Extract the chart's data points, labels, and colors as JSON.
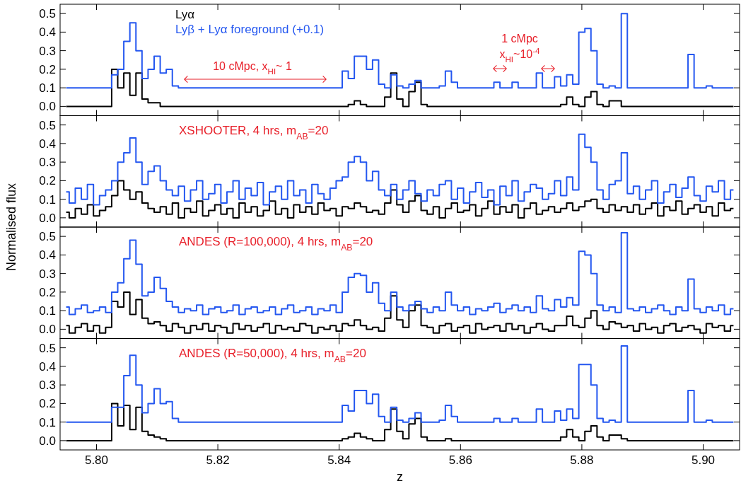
{
  "chart_data": [
    {
      "type": "step",
      "legend": "top left",
      "tick_labels": "y",
      "annotations": [
        "10 cMpc, x$_{HI}$~ 1",
        "1 cMpc",
        "x$_{HI}$~10$^{-4}$"
      ],
      "x": [
        5.795,
        5.796,
        5.797,
        5.798,
        5.799,
        5.8,
        5.801,
        5.802,
        5.803,
        5.804,
        5.805,
        5.806,
        5.807,
        5.808,
        5.809,
        5.81,
        5.811,
        5.812,
        5.813,
        5.814,
        5.815,
        5.816,
        5.817,
        5.818,
        5.819,
        5.82,
        5.821,
        5.822,
        5.823,
        5.824,
        5.825,
        5.826,
        5.827,
        5.828,
        5.829,
        5.83,
        5.831,
        5.832,
        5.833,
        5.834,
        5.835,
        5.836,
        5.837,
        5.838,
        5.839,
        5.84,
        5.841,
        5.842,
        5.843,
        5.844,
        5.845,
        5.846,
        5.847,
        5.848,
        5.849,
        5.85,
        5.851,
        5.852,
        5.853,
        5.854,
        5.855,
        5.856,
        5.857,
        5.858,
        5.859,
        5.86,
        5.861,
        5.862,
        5.863,
        5.864,
        5.865,
        5.866,
        5.867,
        5.868,
        5.869,
        5.87,
        5.871,
        5.872,
        5.873,
        5.874,
        5.875,
        5.876,
        5.877,
        5.878,
        5.879,
        5.88,
        5.881,
        5.882,
        5.883,
        5.884,
        5.885,
        5.886,
        5.887,
        5.888,
        5.889,
        5.89,
        5.891,
        5.892,
        5.893,
        5.894,
        5.895,
        5.896,
        5.897,
        5.898,
        5.899,
        5.9,
        5.901,
        5.902,
        5.903,
        5.904,
        5.905
      ],
      "xlim": [
        5.794,
        5.906
      ],
      "xticks": [
        {
          "value": 5.8,
          "label": null
        },
        {
          "value": 5.82,
          "label": null
        },
        {
          "value": 5.84,
          "label": null
        },
        {
          "value": 5.86,
          "label": null
        },
        {
          "value": 5.88,
          "label": null
        },
        {
          "value": 5.9,
          "label": null
        }
      ],
      "ylim": [
        -0.05,
        0.55
      ],
      "yticks": [
        {
          "value": 0,
          "label": "0.0"
        },
        {
          "value": 0.1,
          "label": "0.1"
        },
        {
          "value": 0.2,
          "label": "0.2"
        },
        {
          "value": 0.3,
          "label": "0.3"
        },
        {
          "value": 0.4,
          "label": "0.4"
        },
        {
          "value": 0.5,
          "label": "0.5"
        }
      ],
      "series": [
        {
          "name": "Lyα",
          "color": "#000000",
          "values": [
            0,
            0,
            0,
            0,
            0,
            0,
            0,
            0,
            0.2,
            0.1,
            0.18,
            0.06,
            0.18,
            0.04,
            0.02,
            0.02,
            0,
            0,
            0,
            0,
            0,
            0,
            0,
            0,
            0,
            0,
            0,
            0,
            0,
            0,
            0,
            0,
            0,
            0,
            0,
            0,
            0,
            0,
            0,
            0,
            0,
            0,
            0,
            0,
            0,
            0,
            0,
            0.01,
            0.03,
            0.01,
            0,
            0,
            0,
            0.05,
            0.18,
            0.04,
            0,
            0.08,
            0.13,
            0.01,
            0,
            0,
            0,
            0,
            0,
            0,
            0,
            0,
            0,
            0,
            0,
            0,
            0,
            0,
            0,
            0,
            0,
            0,
            0,
            0,
            0,
            0,
            0.01,
            0.05,
            0.01,
            0,
            0.05,
            0.08,
            0.01,
            0,
            0.03,
            0.03,
            0,
            0,
            0,
            0,
            0,
            0,
            0,
            0,
            0,
            0,
            0,
            0,
            0,
            0,
            0,
            0,
            0,
            0,
            0
          ]
        },
        {
          "name": "Lyβ + Lyα foreground (+0.1)",
          "color": "#2457f0",
          "values": [
            0.1,
            0.1,
            0.1,
            0.1,
            0.1,
            0.1,
            0.1,
            0.1,
            0.17,
            0.2,
            0.35,
            0.45,
            0.3,
            0.15,
            0.2,
            0.27,
            0.18,
            0.2,
            0.11,
            0.1,
            0.1,
            0.1,
            0.1,
            0.1,
            0.1,
            0.1,
            0.1,
            0.1,
            0.1,
            0.1,
            0.1,
            0.1,
            0.1,
            0.1,
            0.1,
            0.1,
            0.1,
            0.1,
            0.1,
            0.1,
            0.1,
            0.1,
            0.1,
            0.1,
            0.1,
            0.1,
            0.19,
            0.15,
            0.27,
            0.27,
            0.2,
            0.25,
            0.12,
            0.1,
            0.17,
            0.11,
            0.1,
            0.12,
            0.14,
            0.1,
            0.1,
            0.1,
            0.11,
            0.19,
            0.13,
            0.1,
            0.1,
            0.1,
            0.1,
            0.1,
            0.1,
            0.13,
            0.1,
            0.1,
            0.13,
            0.1,
            0.1,
            0.1,
            0.18,
            0.1,
            0.1,
            0.16,
            0.11,
            0.17,
            0.12,
            0.4,
            0.42,
            0.3,
            0.12,
            0.1,
            0.11,
            0.1,
            0.5,
            0.1,
            0.1,
            0.1,
            0.1,
            0.1,
            0.1,
            0.1,
            0.1,
            0.1,
            0.1,
            0.28,
            0.1,
            0.1,
            0.11,
            0.1,
            0.1,
            0.1,
            0.1
          ]
        }
      ]
    },
    {
      "type": "step",
      "tick_labels": "y",
      "ylabel": "Normalised flux",
      "annotations": [
        "XSHOOTER, 4 hrs, m$_{AB}$=20"
      ],
      "x": [
        5.795,
        5.796,
        5.797,
        5.798,
        5.799,
        5.8,
        5.801,
        5.802,
        5.803,
        5.804,
        5.805,
        5.806,
        5.807,
        5.808,
        5.809,
        5.81,
        5.811,
        5.812,
        5.813,
        5.814,
        5.815,
        5.816,
        5.817,
        5.818,
        5.819,
        5.82,
        5.821,
        5.822,
        5.823,
        5.824,
        5.825,
        5.826,
        5.827,
        5.828,
        5.829,
        5.83,
        5.831,
        5.832,
        5.833,
        5.834,
        5.835,
        5.836,
        5.837,
        5.838,
        5.839,
        5.84,
        5.841,
        5.842,
        5.843,
        5.844,
        5.845,
        5.846,
        5.847,
        5.848,
        5.849,
        5.85,
        5.851,
        5.852,
        5.853,
        5.854,
        5.855,
        5.856,
        5.857,
        5.858,
        5.859,
        5.86,
        5.861,
        5.862,
        5.863,
        5.864,
        5.865,
        5.866,
        5.867,
        5.868,
        5.869,
        5.87,
        5.871,
        5.872,
        5.873,
        5.874,
        5.875,
        5.876,
        5.877,
        5.878,
        5.879,
        5.88,
        5.881,
        5.882,
        5.883,
        5.884,
        5.885,
        5.886,
        5.887,
        5.888,
        5.889,
        5.89,
        5.891,
        5.892,
        5.893,
        5.894,
        5.895,
        5.896,
        5.897,
        5.898,
        5.899,
        5.9,
        5.901,
        5.902,
        5.903,
        5.904,
        5.905
      ],
      "xlim": [
        5.794,
        5.906
      ],
      "xticks": [
        {
          "value": 5.8,
          "label": null
        },
        {
          "value": 5.82,
          "label": null
        },
        {
          "value": 5.84,
          "label": null
        },
        {
          "value": 5.86,
          "label": null
        },
        {
          "value": 5.88,
          "label": null
        },
        {
          "value": 5.9,
          "label": null
        }
      ],
      "ylim": [
        -0.05,
        0.55
      ],
      "yticks": [
        {
          "value": 0,
          "label": "0.0"
        },
        {
          "value": 0.1,
          "label": "0.1"
        },
        {
          "value": 0.2,
          "label": "0.2"
        },
        {
          "value": 0.3,
          "label": "0.3"
        },
        {
          "value": 0.4,
          "label": "0.4"
        },
        {
          "value": 0.5,
          "label": "0.5"
        }
      ],
      "series": [
        {
          "color": "#000000",
          "values": [
            0.03,
            0.0,
            0.05,
            0.02,
            0.07,
            0.01,
            0.04,
            0.06,
            0.12,
            0.2,
            0.15,
            0.1,
            0.14,
            0.08,
            0.05,
            0.03,
            0.06,
            0.02,
            0.08,
            0.0,
            0.05,
            0.03,
            0.09,
            0.01,
            0.04,
            0.07,
            0.02,
            0.05,
            0.0,
            0.08,
            0.03,
            0.06,
            0.01,
            0.04,
            0.09,
            0.02,
            0.05,
            0.0,
            0.07,
            0.03,
            0.06,
            0.02,
            0.08,
            0.04,
            0.05,
            0.01,
            0.06,
            0.05,
            0.08,
            0.06,
            0.03,
            0.04,
            0.02,
            0.08,
            0.15,
            0.07,
            0.03,
            0.09,
            0.12,
            0.04,
            0.02,
            0.06,
            0.0,
            0.05,
            0.08,
            0.03,
            0.04,
            0.07,
            0.01,
            0.05,
            0.09,
            0.02,
            0.06,
            0.03,
            0.07,
            0.0,
            0.05,
            0.08,
            0.02,
            0.04,
            0.06,
            0.03,
            0.05,
            0.08,
            0.04,
            0.06,
            0.09,
            0.1,
            0.05,
            0.03,
            0.07,
            0.04,
            0.06,
            0.03,
            0.07,
            0.02,
            0.05,
            0.08,
            0.01,
            0.06,
            0.04,
            0.09,
            0.02,
            0.05,
            0.07,
            0.03,
            0.06,
            0.01,
            0.08,
            0.04,
            0.05
          ]
        },
        {
          "color": "#2457f0",
          "values": [
            0.14,
            0.08,
            0.16,
            0.1,
            0.18,
            0.07,
            0.12,
            0.15,
            0.2,
            0.3,
            0.35,
            0.43,
            0.3,
            0.18,
            0.25,
            0.28,
            0.2,
            0.15,
            0.12,
            0.17,
            0.09,
            0.15,
            0.2,
            0.1,
            0.13,
            0.18,
            0.08,
            0.14,
            0.2,
            0.1,
            0.16,
            0.12,
            0.19,
            0.07,
            0.14,
            0.17,
            0.1,
            0.2,
            0.12,
            0.15,
            0.08,
            0.18,
            0.13,
            0.1,
            0.16,
            0.2,
            0.22,
            0.3,
            0.33,
            0.3,
            0.2,
            0.25,
            0.15,
            0.12,
            0.18,
            0.1,
            0.15,
            0.2,
            0.13,
            0.09,
            0.15,
            0.12,
            0.18,
            0.2,
            0.1,
            0.16,
            0.08,
            0.14,
            0.19,
            0.11,
            0.15,
            0.07,
            0.17,
            0.12,
            0.2,
            0.09,
            0.14,
            0.18,
            0.16,
            0.1,
            0.13,
            0.2,
            0.12,
            0.22,
            0.15,
            0.45,
            0.38,
            0.3,
            0.15,
            0.1,
            0.18,
            0.2,
            0.35,
            0.13,
            0.17,
            0.1,
            0.15,
            0.2,
            0.08,
            0.14,
            0.18,
            0.11,
            0.16,
            0.22,
            0.12,
            0.09,
            0.17,
            0.14,
            0.2,
            0.1,
            0.15
          ]
        }
      ]
    },
    {
      "type": "step",
      "tick_labels": "y",
      "annotations": [
        "ANDES (R=100,000), 4 hrs, m$_{AB}$=20"
      ],
      "x": [
        5.795,
        5.796,
        5.797,
        5.798,
        5.799,
        5.8,
        5.801,
        5.802,
        5.803,
        5.804,
        5.805,
        5.806,
        5.807,
        5.808,
        5.809,
        5.81,
        5.811,
        5.812,
        5.813,
        5.814,
        5.815,
        5.816,
        5.817,
        5.818,
        5.819,
        5.82,
        5.821,
        5.822,
        5.823,
        5.824,
        5.825,
        5.826,
        5.827,
        5.828,
        5.829,
        5.83,
        5.831,
        5.832,
        5.833,
        5.834,
        5.835,
        5.836,
        5.837,
        5.838,
        5.839,
        5.84,
        5.841,
        5.842,
        5.843,
        5.844,
        5.845,
        5.846,
        5.847,
        5.848,
        5.849,
        5.85,
        5.851,
        5.852,
        5.853,
        5.854,
        5.855,
        5.856,
        5.857,
        5.858,
        5.859,
        5.86,
        5.861,
        5.862,
        5.863,
        5.864,
        5.865,
        5.866,
        5.867,
        5.868,
        5.869,
        5.87,
        5.871,
        5.872,
        5.873,
        5.874,
        5.875,
        5.876,
        5.877,
        5.878,
        5.879,
        5.88,
        5.881,
        5.882,
        5.883,
        5.884,
        5.885,
        5.886,
        5.887,
        5.888,
        5.889,
        5.89,
        5.891,
        5.892,
        5.893,
        5.894,
        5.895,
        5.896,
        5.897,
        5.898,
        5.899,
        5.9,
        5.901,
        5.902,
        5.903,
        5.904,
        5.905
      ],
      "xlim": [
        5.794,
        5.906
      ],
      "xticks": [
        {
          "value": 5.8,
          "label": null
        },
        {
          "value": 5.82,
          "label": null
        },
        {
          "value": 5.84,
          "label": null
        },
        {
          "value": 5.86,
          "label": null
        },
        {
          "value": 5.88,
          "label": null
        },
        {
          "value": 5.9,
          "label": null
        }
      ],
      "ylim": [
        -0.05,
        0.55
      ],
      "yticks": [
        {
          "value": 0,
          "label": "0.0"
        },
        {
          "value": 0.1,
          "label": "0.1"
        },
        {
          "value": 0.2,
          "label": "0.2"
        },
        {
          "value": 0.3,
          "label": "0.3"
        },
        {
          "value": 0.4,
          "label": "0.4"
        },
        {
          "value": 0.5,
          "label": "0.5"
        }
      ],
      "series": [
        {
          "color": "#000000",
          "values": [
            0.02,
            -0.02,
            0.01,
            0.03,
            -0.01,
            0.02,
            -0.02,
            0.01,
            0.15,
            0.12,
            0.2,
            0.08,
            0.16,
            0.06,
            0.03,
            0.04,
            0.02,
            -0.01,
            0.03,
            0.01,
            -0.02,
            0.02,
            0.0,
            0.03,
            -0.01,
            0.02,
            0.01,
            -0.02,
            0.03,
            0.0,
            0.02,
            -0.01,
            0.01,
            0.03,
            -0.02,
            0.02,
            0.0,
            0.01,
            -0.01,
            0.03,
            0.02,
            -0.02,
            0.01,
            0.0,
            0.02,
            -0.01,
            0.03,
            0.02,
            0.05,
            0.02,
            0.0,
            0.01,
            -0.01,
            0.06,
            0.18,
            0.05,
            0.01,
            0.1,
            0.13,
            0.02,
            0.01,
            -0.02,
            0.02,
            0.03,
            -0.01,
            0.01,
            0.02,
            -0.02,
            0.03,
            0.0,
            0.01,
            0.02,
            -0.01,
            0.03,
            0.0,
            0.02,
            -0.02,
            0.01,
            0.03,
            0.0,
            -0.01,
            0.02,
            0.02,
            0.07,
            0.02,
            0.01,
            0.06,
            0.1,
            0.02,
            0.0,
            0.04,
            0.03,
            0.01,
            0.02,
            -0.01,
            0.03,
            0.0,
            0.01,
            -0.02,
            0.02,
            0.03,
            -0.01,
            0.01,
            0.02,
            0.0,
            -0.02,
            0.03,
            0.01,
            0.02,
            -0.01,
            0.02
          ]
        },
        {
          "color": "#2457f0",
          "values": [
            0.12,
            0.08,
            0.11,
            0.13,
            0.09,
            0.1,
            0.12,
            0.09,
            0.2,
            0.25,
            0.38,
            0.48,
            0.35,
            0.18,
            0.2,
            0.28,
            0.22,
            0.15,
            0.12,
            0.09,
            0.11,
            0.1,
            0.13,
            0.08,
            0.11,
            0.12,
            0.09,
            0.1,
            0.13,
            0.08,
            0.11,
            0.12,
            0.09,
            0.1,
            0.12,
            0.08,
            0.11,
            0.13,
            0.09,
            0.1,
            0.12,
            0.08,
            0.11,
            0.1,
            0.13,
            0.09,
            0.2,
            0.28,
            0.3,
            0.29,
            0.2,
            0.25,
            0.14,
            0.1,
            0.2,
            0.12,
            0.1,
            0.13,
            0.15,
            0.11,
            0.09,
            0.12,
            0.1,
            0.2,
            0.13,
            0.1,
            0.12,
            0.08,
            0.11,
            0.1,
            0.12,
            0.14,
            0.09,
            0.11,
            0.13,
            0.1,
            0.12,
            0.09,
            0.18,
            0.11,
            0.1,
            0.16,
            0.12,
            0.17,
            0.13,
            0.42,
            0.4,
            0.3,
            0.13,
            0.1,
            0.12,
            0.09,
            0.52,
            0.11,
            0.1,
            0.12,
            0.09,
            0.11,
            0.13,
            0.1,
            0.08,
            0.12,
            0.1,
            0.27,
            0.11,
            0.09,
            0.12,
            0.1,
            0.13,
            0.08,
            0.11
          ]
        }
      ]
    },
    {
      "type": "step",
      "xlabel": "z",
      "annotations": [
        "ANDES (R=50,000), 4 hrs, m$_{AB}$=20"
      ],
      "x": [
        5.795,
        5.796,
        5.797,
        5.798,
        5.799,
        5.8,
        5.801,
        5.802,
        5.803,
        5.804,
        5.805,
        5.806,
        5.807,
        5.808,
        5.809,
        5.81,
        5.811,
        5.812,
        5.813,
        5.814,
        5.815,
        5.816,
        5.817,
        5.818,
        5.819,
        5.82,
        5.821,
        5.822,
        5.823,
        5.824,
        5.825,
        5.826,
        5.827,
        5.828,
        5.829,
        5.83,
        5.831,
        5.832,
        5.833,
        5.834,
        5.835,
        5.836,
        5.837,
        5.838,
        5.839,
        5.84,
        5.841,
        5.842,
        5.843,
        5.844,
        5.845,
        5.846,
        5.847,
        5.848,
        5.849,
        5.85,
        5.851,
        5.852,
        5.853,
        5.854,
        5.855,
        5.856,
        5.857,
        5.858,
        5.859,
        5.86,
        5.861,
        5.862,
        5.863,
        5.864,
        5.865,
        5.866,
        5.867,
        5.868,
        5.869,
        5.87,
        5.871,
        5.872,
        5.873,
        5.874,
        5.875,
        5.876,
        5.877,
        5.878,
        5.879,
        5.88,
        5.881,
        5.882,
        5.883,
        5.884,
        5.885,
        5.886,
        5.887,
        5.888,
        5.889,
        5.89,
        5.891,
        5.892,
        5.893,
        5.894,
        5.895,
        5.896,
        5.897,
        5.898,
        5.899,
        5.9,
        5.901,
        5.902,
        5.903,
        5.904,
        5.905
      ],
      "xlim": [
        5.794,
        5.906
      ],
      "xticks": [
        {
          "value": 5.8,
          "label": "5.80"
        },
        {
          "value": 5.82,
          "label": "5.82"
        },
        {
          "value": 5.84,
          "label": "5.84"
        },
        {
          "value": 5.86,
          "label": "5.86"
        },
        {
          "value": 5.88,
          "label": "5.88"
        },
        {
          "value": 5.9,
          "label": "5.90"
        }
      ],
      "ylim": [
        -0.05,
        0.55
      ],
      "yticks": [
        {
          "value": 0,
          "label": "0.0"
        },
        {
          "value": 0.1,
          "label": "0.1"
        },
        {
          "value": 0.2,
          "label": "0.2"
        },
        {
          "value": 0.3,
          "label": "0.3"
        },
        {
          "value": 0.4,
          "label": "0.4"
        },
        {
          "value": 0.5,
          "label": "0.5"
        }
      ],
      "series": [
        {
          "color": "#000000",
          "values": [
            0,
            0,
            0,
            0,
            0,
            0,
            0,
            0,
            0.2,
            0.08,
            0.19,
            0.06,
            0.18,
            0.05,
            0.03,
            0.02,
            0.01,
            0,
            0,
            0,
            0,
            0,
            0,
            0,
            0,
            0,
            0,
            0,
            0,
            0,
            0,
            0,
            0,
            0,
            0,
            0,
            0,
            0,
            0,
            0,
            0,
            0,
            0,
            0,
            0,
            0,
            0.01,
            0.02,
            0.04,
            0.02,
            0.01,
            0,
            0,
            0.06,
            0.17,
            0.05,
            0.01,
            0.09,
            0.12,
            0.02,
            0,
            0,
            0,
            0.01,
            0,
            0,
            0,
            0,
            0,
            0,
            0,
            0,
            0,
            0,
            0,
            0,
            0,
            0,
            0,
            0,
            0,
            0,
            0.02,
            0.06,
            0.02,
            0,
            0.05,
            0.08,
            0.02,
            0,
            0.03,
            0.03,
            0.01,
            0,
            0,
            0,
            0,
            0,
            0,
            0,
            0,
            0,
            0,
            0,
            0,
            0,
            0,
            0,
            0,
            0,
            0
          ]
        },
        {
          "color": "#2457f0",
          "values": [
            0.1,
            0.1,
            0.1,
            0.1,
            0.1,
            0.1,
            0.1,
            0.1,
            0.18,
            0.18,
            0.35,
            0.46,
            0.3,
            0.15,
            0.2,
            0.28,
            0.2,
            0.21,
            0.12,
            0.1,
            0.1,
            0.1,
            0.1,
            0.1,
            0.1,
            0.1,
            0.1,
            0.1,
            0.1,
            0.1,
            0.1,
            0.1,
            0.1,
            0.1,
            0.1,
            0.1,
            0.1,
            0.1,
            0.1,
            0.1,
            0.1,
            0.1,
            0.1,
            0.1,
            0.1,
            0.1,
            0.19,
            0.16,
            0.27,
            0.27,
            0.2,
            0.25,
            0.13,
            0.1,
            0.18,
            0.11,
            0.1,
            0.12,
            0.15,
            0.1,
            0.1,
            0.1,
            0.11,
            0.19,
            0.13,
            0.1,
            0.1,
            0.1,
            0.1,
            0.1,
            0.1,
            0.12,
            0.1,
            0.1,
            0.12,
            0.1,
            0.1,
            0.1,
            0.17,
            0.1,
            0.1,
            0.16,
            0.11,
            0.17,
            0.12,
            0.41,
            0.41,
            0.3,
            0.12,
            0.1,
            0.11,
            0.1,
            0.51,
            0.1,
            0.1,
            0.1,
            0.1,
            0.1,
            0.1,
            0.1,
            0.1,
            0.1,
            0.1,
            0.27,
            0.1,
            0.1,
            0.11,
            0.1,
            0.1,
            0.1,
            0.1
          ]
        }
      ]
    }
  ]
}
